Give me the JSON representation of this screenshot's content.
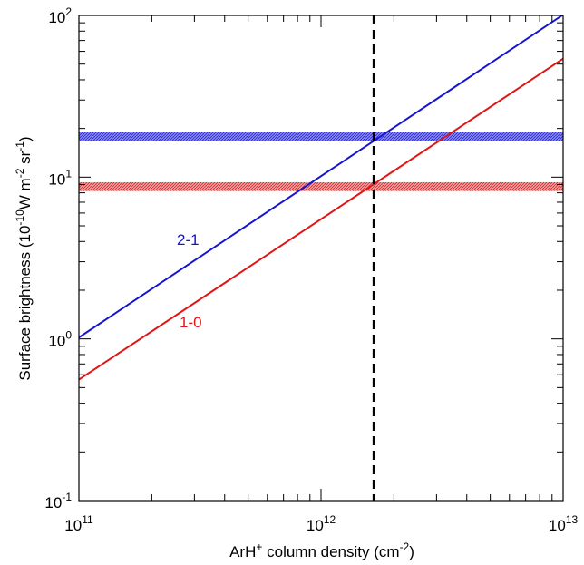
{
  "chart_data": {
    "type": "line",
    "title": "",
    "xlabel": {
      "pre": "ArH",
      "sup": "+",
      "post": " column density (cm",
      "sup2": "-2",
      "post2": ")"
    },
    "ylabel": {
      "pre": "Surface brightness (10",
      "sup1": "-10",
      "mid1": "W m",
      "sup2": "-2",
      "mid2": " sr",
      "sup3": "-1",
      "post": ")"
    },
    "x_scale": "log",
    "y_scale": "log",
    "xlim": [
      100000000000.0,
      10000000000000.0
    ],
    "ylim": [
      0.1,
      100
    ],
    "x_ticks": [
      {
        "value": 100000000000.0,
        "base": "10",
        "exp": "11"
      },
      {
        "value": 1000000000000.0,
        "base": "10",
        "exp": "12"
      },
      {
        "value": 10000000000000.0,
        "base": "10",
        "exp": "13"
      }
    ],
    "y_ticks": [
      {
        "value": 0.1,
        "base": "10",
        "exp": "-1"
      },
      {
        "value": 1,
        "base": "10",
        "exp": "0"
      },
      {
        "value": 10,
        "base": "10",
        "exp": "1"
      },
      {
        "value": 100,
        "base": "10",
        "exp": "2"
      }
    ],
    "series": [
      {
        "name": "2-1",
        "color": "#1515d0",
        "x": [
          100000000000.0,
          10000000000000.0
        ],
        "y": [
          1.02,
          101
        ]
      },
      {
        "name": "1-0",
        "color": "#e01515",
        "x": [
          100000000000.0,
          10000000000000.0
        ],
        "y": [
          0.56,
          54
        ]
      }
    ],
    "bands": [
      {
        "series": "2-1",
        "color": "#4040e0",
        "y_range": [
          16.8,
          19.0
        ]
      },
      {
        "series": "1-0",
        "color": "#e05050",
        "y_range": [
          8.2,
          9.3
        ]
      }
    ],
    "vline": {
      "x": 1650000000000.0,
      "style": "dashed",
      "color": "#000000"
    }
  }
}
